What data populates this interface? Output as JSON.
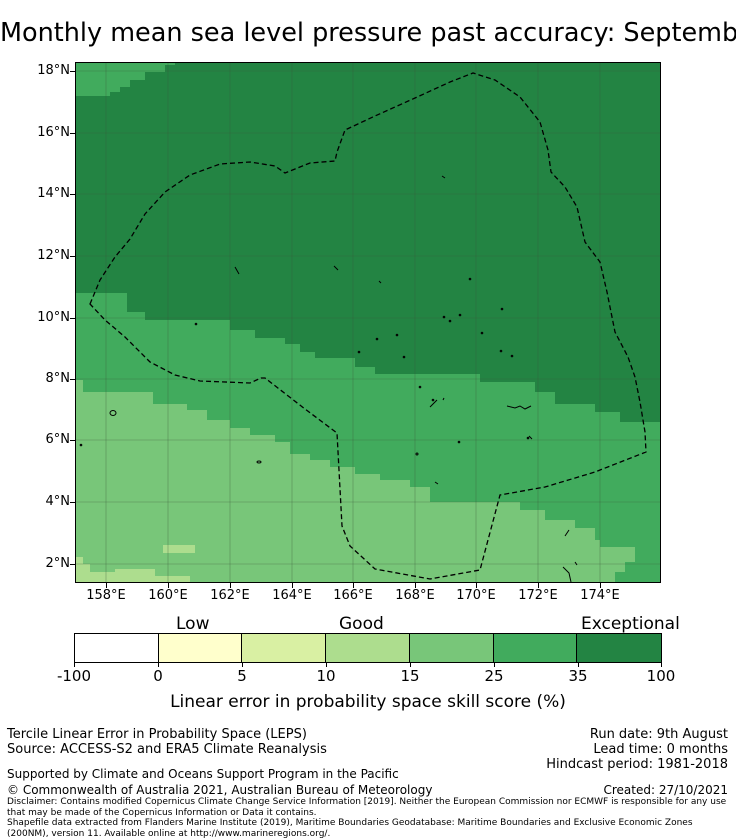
{
  "title": "Monthly mean sea level pressure past accuracy: September",
  "map": {
    "y_ticks": [
      "18°N",
      "16°N",
      "14°N",
      "12°N",
      "10°N",
      "8°N",
      "6°N",
      "4°N",
      "2°N"
    ],
    "x_ticks": [
      "158°E",
      "160°E",
      "162°E",
      "164°E",
      "166°E",
      "168°E",
      "170°E",
      "172°E",
      "174°E"
    ],
    "colors": {
      "exceptional": "#238443",
      "35-25": "#41ab5d",
      "25-15": "#78c679",
      "15-10": "#addd8e",
      "boundary": "#000000"
    }
  },
  "colorbar": {
    "categories": [
      "Low",
      "Good",
      "Exceptional"
    ],
    "ticks": [
      "-100",
      "0",
      "5",
      "10",
      "15",
      "25",
      "35",
      "100"
    ],
    "colors": [
      "#ffffff",
      "#ffffcc",
      "#d9f0a3",
      "#addd8e",
      "#78c679",
      "#41ab5d",
      "#238443"
    ],
    "label": "Linear error in probability space skill score (%)"
  },
  "info": {
    "line1": "Tercile Linear Error in Probability Space (LEPS)",
    "line2": "Source: ACCESS-S2 and ERA5 Climate Reanalysis",
    "run_date": "Run date: 9th August",
    "lead_time": "Lead time: 0 months",
    "hindcast": "Hindcast period: 1981-2018",
    "supported": "Supported by Climate and Oceans Support Program in the Pacific",
    "copyright": "© Commonwealth of Australia 2021, Australian Bureau of Meteorology",
    "created": "Created: 27/10/2021",
    "disclaimer": "Disclaimer: Contains modified Copernicus Climate Change Service Information [2019]. Neither the European Commission nor ECMWF is responsible for any use that may be made of the Copernicus Information or Data it contains.",
    "shapefile": "Shapefile data extracted from Flanders Marine Institute (2019), Maritime Boundaries Geodatabase: Maritime Boundaries and Exclusive Economic Zones (200NM), version 11. Available online at http://www.marineregions.org/."
  }
}
